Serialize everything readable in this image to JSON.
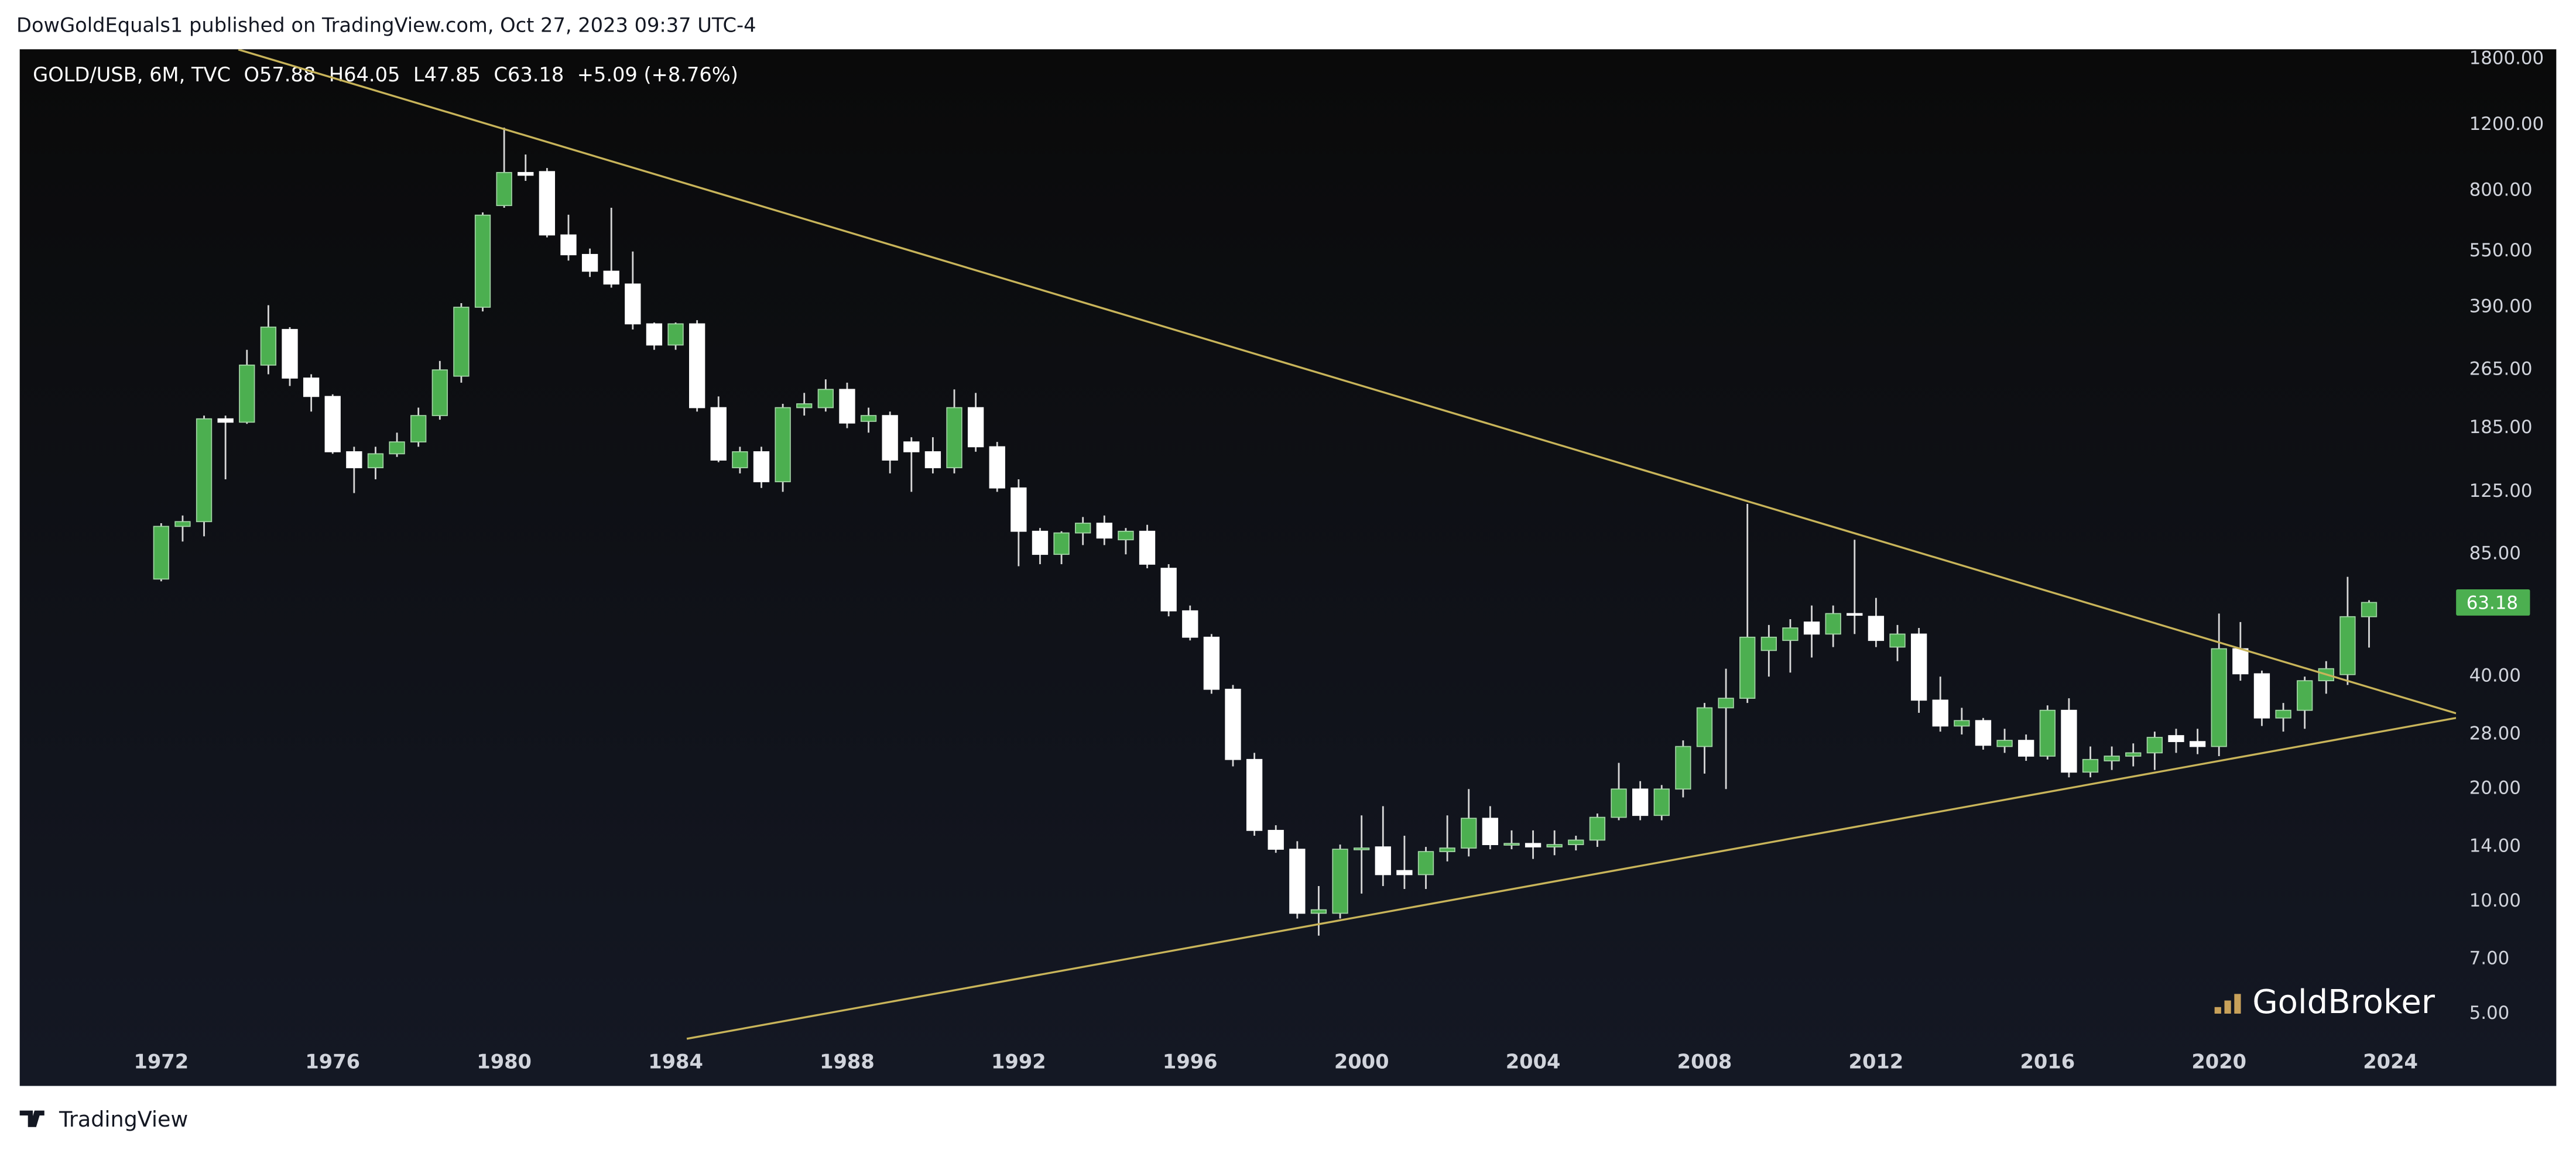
{
  "header": "DowGoldEquals1 published on TradingView.com, Oct 27, 2023 09:37 UTC-4",
  "footer": "TradingView",
  "chart_data": {
    "type": "candlestick",
    "symbol": "GOLD/USB, 6M, TVC",
    "ohlc_legend": [
      "O57.88",
      "H64.05",
      "L47.85",
      "C63.18",
      "+5.09 (+8.76%)"
    ],
    "watermark": "GoldBroker",
    "last_price_label": "63.18",
    "up_color": "#4caf50",
    "down_color": "#ffffff",
    "wick_color": "#d8d8d8",
    "log_scale": true,
    "grid": false,
    "xlim": [
      1968.7,
      2025.53
    ],
    "xticks": [
      1972,
      1976,
      1980,
      1984,
      1988,
      1992,
      1996,
      2000,
      2004,
      2008,
      2012,
      2016,
      2020,
      2024
    ],
    "ylim": [
      3.24,
      1913
    ],
    "yticks": [
      {
        "value": 1800,
        "label": "1800.00"
      },
      {
        "value": 1200,
        "label": "1200.00"
      },
      {
        "value": 800,
        "label": "800.00"
      },
      {
        "value": 550,
        "label": "550.00"
      },
      {
        "value": 390,
        "label": "390.00"
      },
      {
        "value": 265,
        "label": "265.00"
      },
      {
        "value": 185,
        "label": "185.00"
      },
      {
        "value": 125,
        "label": "125.00"
      },
      {
        "value": 85,
        "label": "85.00"
      },
      {
        "value": 40,
        "label": "40.00"
      },
      {
        "value": 28,
        "label": "28.00"
      },
      {
        "value": 20,
        "label": "20.00"
      },
      {
        "value": 14,
        "label": "14.00"
      },
      {
        "value": 10,
        "label": "10.00"
      },
      {
        "value": 7,
        "label": "7.00"
      },
      {
        "value": 5,
        "label": "5.00"
      }
    ],
    "x": [
      1972,
      1972.5,
      1973,
      1973.5,
      1974,
      1974.5,
      1975,
      1975.5,
      1976,
      1976.5,
      1977,
      1977.5,
      1978,
      1978.5,
      1979,
      1979.5,
      1980,
      1980.5,
      1981,
      1981.5,
      1982,
      1982.5,
      1983,
      1983.5,
      1984,
      1984.5,
      1985,
      1985.5,
      1986,
      1986.5,
      1987,
      1987.5,
      1988,
      1988.5,
      1989,
      1989.5,
      1990,
      1990.5,
      1991,
      1991.5,
      1992,
      1992.5,
      1993,
      1993.5,
      1994,
      1994.5,
      1995,
      1995.5,
      1996,
      1996.5,
      1997,
      1997.5,
      1998,
      1998.5,
      1999,
      1999.5,
      2000,
      2000.5,
      2001,
      2001.5,
      2002,
      2002.5,
      2003,
      2003.5,
      2004,
      2004.5,
      2005,
      2005.5,
      2006,
      2006.5,
      2007,
      2007.5,
      2008,
      2008.5,
      2009,
      2009.5,
      2010,
      2010.5,
      2011,
      2011.5,
      2012,
      2012.5,
      2013,
      2013.5,
      2014,
      2014.5,
      2015,
      2015.5,
      2016,
      2016.5,
      2017,
      2017.5,
      2018,
      2018.5,
      2019,
      2019.5,
      2020,
      2020.5,
      2021,
      2021.5,
      2022,
      2022.5,
      2023,
      2023.5
    ],
    "open": [
      73,
      101,
      104,
      196,
      192,
      273,
      340,
      252,
      225,
      160,
      145,
      158,
      170,
      200,
      255,
      390,
      730,
      895,
      900,
      609,
      540,
      487,
      450,
      352,
      309,
      352,
      210,
      145,
      160,
      133,
      210,
      210,
      235,
      193,
      200,
      170,
      160,
      145,
      210,
      165,
      128,
      98,
      85,
      97,
      103,
      93,
      98,
      78,
      60,
      51,
      37,
      24,
      15.5,
      13.8,
      9.3,
      9.3,
      13.8,
      14,
      12.1,
      11.8,
      13.6,
      13.9,
      16.7,
      14.2,
      14.3,
      14,
      14.2,
      14.6,
      16.8,
      20,
      17,
      20,
      26,
      33,
      35,
      47,
      50,
      56,
      52,
      59,
      58,
      48,
      52,
      34.6,
      29.5,
      30.5,
      26,
      27,
      24.5,
      32.5,
      22.2,
      23.8,
      24.5,
      25,
      27.8,
      26.8,
      26,
      47.5,
      40.7,
      31,
      32.5,
      39,
      40.5,
      57.88
    ],
    "high": [
      103,
      108,
      200,
      200,
      300,
      395,
      345,
      258,
      228,
      165,
      165,
      180,
      210,
      280,
      400,
      700,
      1180,
      1000,
      920,
      690,
      560,
      720,
      550,
      355,
      355,
      360,
      225,
      165,
      165,
      215,
      230,
      250,
      245,
      210,
      205,
      175,
      175,
      235,
      230,
      170,
      135,
      100,
      98,
      107,
      108,
      100,
      102,
      80,
      62,
      52,
      38,
      25,
      16,
      14.5,
      11,
      14.2,
      17,
      18,
      15,
      14,
      17,
      20,
      18,
      15.5,
      15.5,
      15.5,
      15,
      17.2,
      23.5,
      21,
      20.5,
      27,
      34,
      42,
      116,
      55,
      57,
      62,
      62,
      93,
      65,
      55,
      54,
      40,
      33,
      31,
      29,
      28,
      33.5,
      35,
      26,
      26,
      26.5,
      28.5,
      29,
      29,
      59,
      56,
      41.5,
      34,
      40,
      44,
      74,
      64.05
    ],
    "low": [
      72,
      92,
      95,
      135,
      190,
      258,
      240,
      205,
      158,
      124,
      135,
      155,
      165,
      195,
      245,
      380,
      720,
      850,
      600,
      520,
      470,
      440,
      340,
      300,
      300,
      205,
      150,
      140,
      128,
      125,
      200,
      205,
      185,
      180,
      140,
      125,
      140,
      140,
      160,
      125,
      79,
      80,
      80,
      90,
      90,
      85,
      78,
      58,
      50,
      36,
      23,
      15,
      13.5,
      9,
      8.1,
      9,
      10.5,
      11,
      10.8,
      10.8,
      12.8,
      13.2,
      13.8,
      13.8,
      13,
      13.3,
      13.7,
      14,
      16.5,
      16.5,
      16.5,
      19,
      22,
      20,
      34,
      40,
      41,
      45,
      48,
      52,
      48,
      44,
      32,
      28.5,
      28,
      25.5,
      25,
      23.8,
      24,
      21.5,
      21.5,
      22.5,
      23,
      22.5,
      25,
      24.8,
      24.5,
      39,
      29.5,
      28.5,
      29,
      36,
      38,
      47.85
    ],
    "close": [
      101,
      104,
      196,
      192,
      273,
      345,
      252,
      225,
      160,
      145,
      158,
      170,
      200,
      265,
      390,
      688,
      895,
      880,
      609,
      539,
      487,
      450,
      352,
      309,
      352,
      210,
      152,
      160,
      133,
      210,
      215,
      235,
      191,
      200,
      152,
      160,
      145,
      210,
      165,
      128,
      98,
      85,
      97,
      103,
      94,
      98,
      80,
      60,
      51,
      37,
      24,
      15.5,
      13.8,
      9.3,
      9.5,
      13.8,
      13.9,
      11.8,
      11.8,
      13.6,
      13.9,
      16.7,
      14.2,
      14.3,
      14,
      14.2,
      14.6,
      16.8,
      20,
      17,
      20,
      26,
      33,
      35,
      51,
      51,
      54,
      52,
      59,
      58.5,
      50,
      52,
      34.6,
      29.5,
      30.5,
      26.2,
      27,
      24.5,
      32.5,
      22.2,
      24,
      24.5,
      25,
      27.5,
      26.8,
      26,
      47.5,
      40.7,
      31,
      32.5,
      39,
      42,
      57.88,
      63.18
    ],
    "trendlines": [
      {
        "color": "#c8b45a",
        "x": [
          1973.8,
          2025.53
        ],
        "values": [
          1910,
          31.9
        ]
      },
      {
        "color": "#c8b45a",
        "x": [
          1984.26,
          2025.53
        ],
        "values": [
          4.29,
          31.0
        ]
      }
    ]
  }
}
